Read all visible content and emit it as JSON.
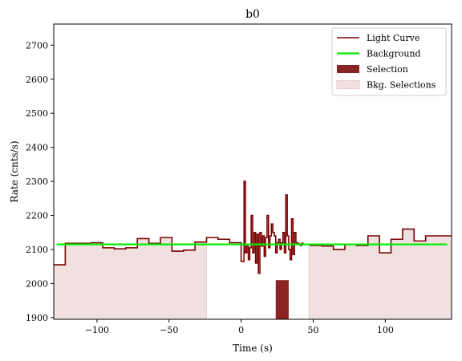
{
  "chart_data": {
    "type": "line",
    "title": "b0",
    "xlabel": "Time (s)",
    "ylabel": "Rate (cnts/s)",
    "xlim": [
      -130,
      146
    ],
    "ylim": [
      1895,
      2762
    ],
    "xticks": [
      -100,
      -50,
      0,
      50,
      100
    ],
    "xtick_labels": [
      "−100",
      "−50",
      "0",
      "50",
      "100"
    ],
    "yticks": [
      1900,
      2000,
      2100,
      2200,
      2300,
      2400,
      2500,
      2600,
      2700
    ],
    "ytick_labels": [
      "1900",
      "2000",
      "2100",
      "2200",
      "2300",
      "2400",
      "2500",
      "2600",
      "2700"
    ],
    "grid": false,
    "legend_position": "top-right",
    "colors": {
      "light_curve": "#7a0000",
      "background": "#00ee00",
      "selection": "#8b2323",
      "bkg_selection": "#f0e0e0"
    },
    "legend": [
      {
        "key": "light_curve",
        "label": "Light Curve",
        "marker": "line"
      },
      {
        "key": "background",
        "label": "Background",
        "marker": "line"
      },
      {
        "key": "selection",
        "label": "Selection",
        "marker": "patch"
      },
      {
        "key": "bkg_selection",
        "label": "Bkg. Selections",
        "marker": "patch"
      }
    ],
    "series": [
      {
        "name": "Light Curve",
        "kind": "step",
        "x": [
          -130,
          -122,
          -104,
          -96,
          -88,
          -80,
          -72,
          -64,
          -56,
          -48,
          -40,
          -32,
          -24,
          -16,
          -8,
          0,
          2,
          3,
          4,
          5,
          6,
          7,
          8,
          9,
          10,
          11,
          12,
          13,
          14,
          15,
          16,
          17,
          18,
          19,
          20,
          21,
          22,
          23,
          24,
          25,
          26,
          27,
          28,
          29,
          30,
          31,
          32,
          33,
          34,
          35,
          36,
          37,
          38,
          39,
          40,
          41,
          42,
          43,
          44,
          45,
          46,
          47,
          48,
          56,
          64,
          72,
          80,
          88,
          96,
          104,
          112,
          120,
          128,
          136,
          146
        ],
        "y": [
          2055,
          2118,
          2120,
          2105,
          2102,
          2105,
          2132,
          2118,
          2135,
          2095,
          2098,
          2122,
          2135,
          2130,
          2120,
          2065,
          2300,
          2090,
          2110,
          2070,
          2105,
          2200,
          2090,
          2150,
          2060,
          2145,
          2030,
          2150,
          2110,
          2140,
          2080,
          2135,
          2200,
          2105,
          2140,
          2175,
          2150,
          2140,
          2090,
          2120,
          2130,
          2100,
          2120,
          2150,
          2090,
          2260,
          2140,
          2100,
          2070,
          2190,
          2085,
          2150,
          2120,
          2118,
          2115,
          2112,
          2118,
          2115,
          2115,
          2115,
          2115,
          2115,
          2112,
          2110,
          2100,
          2115,
          2112,
          2140,
          2090,
          2130,
          2160,
          2125,
          2140,
          2140,
          2140
        ]
      },
      {
        "name": "Background",
        "kind": "line",
        "x": [
          -128,
          143
        ],
        "y": [
          2115,
          2115
        ]
      }
    ],
    "selection": [
      {
        "x": [
          24,
          33
        ],
        "y_top": 2010
      }
    ],
    "bkg_selections": [
      {
        "x": [
          -130,
          -24
        ]
      },
      {
        "x": [
          47,
          146
        ]
      }
    ]
  }
}
